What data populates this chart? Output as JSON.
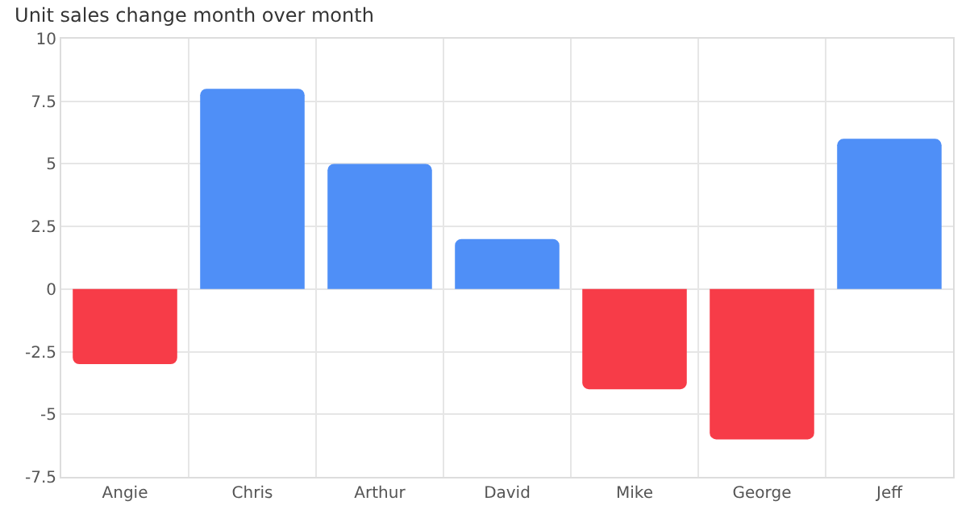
{
  "chart_data": {
    "type": "bar",
    "title": "Unit sales change month over month",
    "categories": [
      "Angie",
      "Chris",
      "Arthur",
      "David",
      "Mike",
      "George",
      "Jeff"
    ],
    "values": [
      -3,
      8,
      5,
      2,
      -4,
      -6,
      6
    ],
    "colors": [
      "#f73c48",
      "#4f8ff7",
      "#4f8ff7",
      "#4f8ff7",
      "#f73c48",
      "#f73c48",
      "#4f8ff7"
    ],
    "ylim": [
      -7.5,
      10
    ],
    "yticks": [
      -7.5,
      -5,
      -2.5,
      0,
      2.5,
      5,
      7.5,
      10
    ],
    "grid": true
  }
}
